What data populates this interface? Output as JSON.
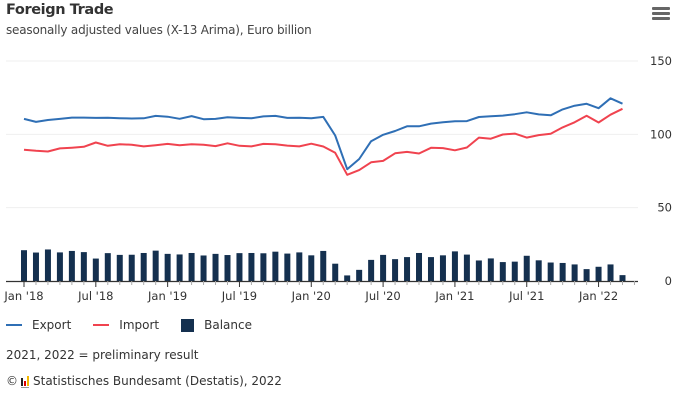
{
  "header": {
    "title": "Foreign Trade",
    "subtitle": "seasonally adjusted values (X-13 Arima), Euro billion",
    "menu_icon": "hamburger-menu-icon"
  },
  "colors": {
    "export": "#2f6fb5",
    "import": "#f0434f",
    "balance": "#14304f",
    "grid": "#efefef",
    "axis": "#333333"
  },
  "chart_data": {
    "type": "bar+line",
    "title": "Foreign Trade",
    "subtitle": "seasonally adjusted values (X-13 Arima), Euro billion",
    "xlabel": "",
    "ylabel": "",
    "ylim": [
      0,
      150
    ],
    "yticks": [
      0,
      50,
      100,
      150
    ],
    "y_axis_side": "right",
    "grid": true,
    "legend_position": "bottom-left",
    "x_tick_labels": [
      {
        "index": 0,
        "label": "Jan '18"
      },
      {
        "index": 6,
        "label": "Jul '18"
      },
      {
        "index": 12,
        "label": "Jan '19"
      },
      {
        "index": 18,
        "label": "Jul '19"
      },
      {
        "index": 24,
        "label": "Jan '20"
      },
      {
        "index": 30,
        "label": "Jul '20"
      },
      {
        "index": 36,
        "label": "Jan '21"
      },
      {
        "index": 42,
        "label": "Jul '21"
      },
      {
        "index": 48,
        "label": "Jan '22"
      }
    ],
    "categories": [
      "2018-01",
      "2018-02",
      "2018-03",
      "2018-04",
      "2018-05",
      "2018-06",
      "2018-07",
      "2018-08",
      "2018-09",
      "2018-10",
      "2018-11",
      "2018-12",
      "2019-01",
      "2019-02",
      "2019-03",
      "2019-04",
      "2019-05",
      "2019-06",
      "2019-07",
      "2019-08",
      "2019-09",
      "2019-10",
      "2019-11",
      "2019-12",
      "2020-01",
      "2020-02",
      "2020-03",
      "2020-04",
      "2020-05",
      "2020-06",
      "2020-07",
      "2020-08",
      "2020-09",
      "2020-10",
      "2020-11",
      "2020-12",
      "2021-01",
      "2021-02",
      "2021-03",
      "2021-04",
      "2021-05",
      "2021-06",
      "2021-07",
      "2021-08",
      "2021-09",
      "2021-10",
      "2021-11",
      "2021-12",
      "2022-01",
      "2022-02",
      "2022-03"
    ],
    "series": [
      {
        "name": "Export",
        "type": "line",
        "values": [
          110.5,
          108.5,
          109.8,
          110.5,
          111.4,
          111.4,
          111.2,
          111.3,
          111.0,
          110.8,
          110.9,
          112.6,
          112.0,
          110.6,
          112.4,
          110.3,
          110.5,
          111.6,
          111.2,
          110.9,
          112.2,
          112.6,
          111.2,
          111.3,
          111.0,
          111.9,
          99.2,
          76.2,
          83.2,
          95.3,
          99.7,
          102.3,
          105.5,
          105.5,
          107.3,
          108.2,
          108.9,
          109.0,
          111.8,
          112.3,
          112.8,
          113.7,
          115.0,
          113.6,
          113.0,
          117.0,
          119.5,
          120.8,
          117.8,
          124.6,
          120.9
        ]
      },
      {
        "name": "Import",
        "type": "line",
        "values": [
          89.5,
          88.8,
          88.3,
          90.4,
          90.9,
          91.5,
          94.4,
          92.2,
          93.2,
          92.9,
          91.8,
          92.6,
          93.5,
          92.5,
          93.3,
          92.9,
          92.0,
          93.9,
          92.2,
          91.8,
          93.5,
          93.2,
          92.3,
          91.8,
          93.6,
          91.7,
          87.4,
          72.4,
          75.6,
          80.9,
          81.9,
          87.1,
          88.0,
          86.9,
          90.8,
          90.6,
          89.1,
          91.0,
          97.8,
          97.0,
          99.9,
          100.5,
          97.8,
          99.5,
          100.4,
          104.7,
          108.2,
          112.7,
          108.1,
          113.4,
          117.4
        ]
      },
      {
        "name": "Balance",
        "type": "bar",
        "values": [
          21.0,
          19.4,
          21.5,
          19.5,
          20.5,
          19.7,
          15.3,
          19.0,
          17.8,
          17.9,
          19.1,
          20.7,
          18.5,
          18.1,
          19.1,
          17.4,
          18.5,
          17.7,
          19.0,
          19.1,
          18.9,
          20.0,
          18.7,
          19.5,
          17.5,
          20.5,
          11.8,
          3.8,
          7.6,
          14.4,
          17.8,
          14.9,
          16.3,
          19.1,
          16.3,
          17.5,
          20.2,
          18.0,
          14.0,
          15.4,
          12.9,
          13.2,
          17.2,
          14.1,
          12.6,
          12.3,
          11.3,
          8.1,
          9.7,
          11.3,
          4.0
        ]
      }
    ]
  },
  "legend": {
    "items": [
      {
        "label": "Export",
        "icon": "line-icon"
      },
      {
        "label": "Import",
        "icon": "line-icon"
      },
      {
        "label": "Balance",
        "icon": "square-icon"
      }
    ]
  },
  "footer": {
    "note": "2021, 2022 = preliminary result",
    "copyright_symbol": "©",
    "credits": "Statistisches Bundesamt (Destatis), 2022"
  }
}
